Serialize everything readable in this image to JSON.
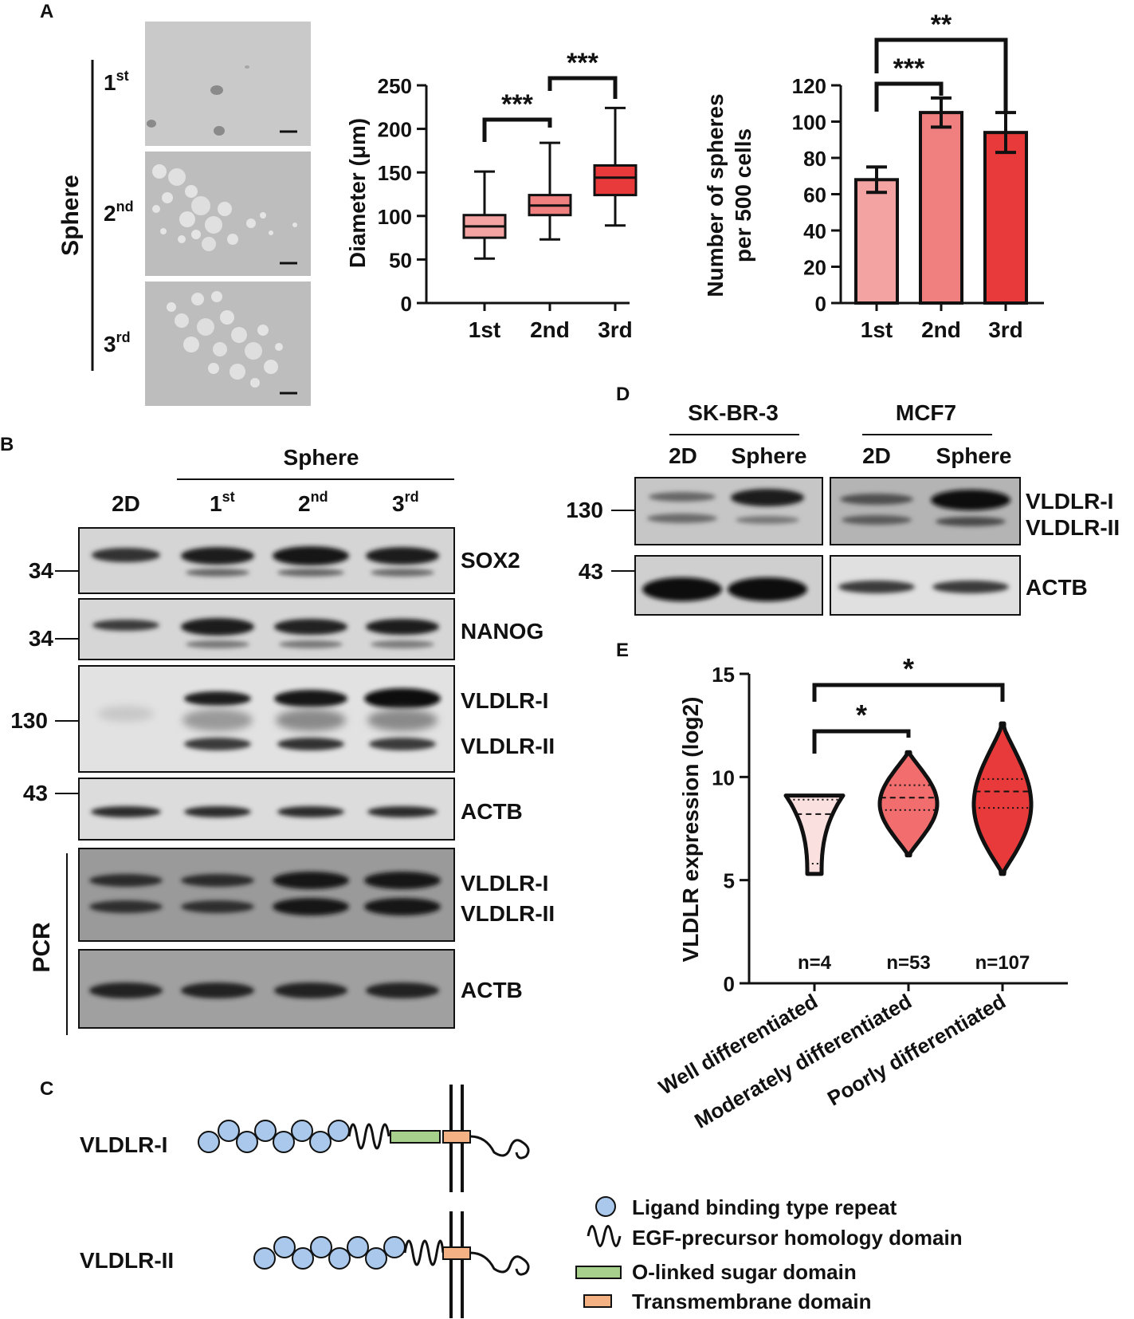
{
  "panel_letters": {
    "a": "A",
    "b": "B",
    "c": "C",
    "d": "D",
    "e": "E"
  },
  "panelA": {
    "sphere_label": "Sphere",
    "rows": [
      {
        "base": "1",
        "sup": "st"
      },
      {
        "base": "2",
        "sup": "nd"
      },
      {
        "base": "3",
        "sup": "rd"
      }
    ]
  },
  "panelB": {
    "sphere_header": "Sphere",
    "lanes": [
      {
        "base": "2D",
        "sup": ""
      },
      {
        "base": "1",
        "sup": "st"
      },
      {
        "base": "2",
        "sup": "nd"
      },
      {
        "base": "3",
        "sup": "rd"
      }
    ],
    "blots": [
      {
        "marker": "34",
        "labels": [
          "SOX2"
        ]
      },
      {
        "marker": "34",
        "labels": [
          "NANOG"
        ]
      },
      {
        "marker": "130",
        "labels": [
          "VLDLR-I",
          "VLDLR-II"
        ]
      },
      {
        "marker": "43",
        "labels": [
          "ACTB"
        ]
      },
      {
        "marker": "",
        "labels": [
          "VLDLR-I",
          "VLDLR-II"
        ]
      },
      {
        "marker": "",
        "labels": [
          "ACTB"
        ]
      }
    ],
    "pcr_label": "PCR"
  },
  "panelC": {
    "rows": [
      "VLDLR-I",
      "VLDLR-II"
    ],
    "legend": [
      "Ligand binding type repeat",
      "EGF-precursor homology domain",
      "O-linked sugar domain",
      "Transmembrane domain"
    ],
    "colors": {
      "ligand": "#a9c8ec",
      "sugar": "#a8d08d",
      "tm": "#f4b183"
    }
  },
  "panelD": {
    "groups": [
      {
        "name": "SK-BR-3",
        "lanes": [
          "2D",
          "Sphere"
        ]
      },
      {
        "name": "MCF7",
        "lanes": [
          "2D",
          "Sphere"
        ]
      }
    ],
    "markers": [
      "130",
      "43"
    ],
    "labels": [
      "VLDLR-I",
      "VLDLR-II",
      "ACTB"
    ]
  },
  "chart_data": [
    {
      "type": "box",
      "ylabel": "Diameter (μm)",
      "ylim": [
        0,
        250
      ],
      "yticks": [
        "0",
        "50",
        "100",
        "150",
        "200",
        "250"
      ],
      "categories": [
        "1st",
        "2nd",
        "3rd"
      ],
      "colors": [
        "#f4a3a3",
        "#f07f7f",
        "#e83a3a"
      ],
      "boxes": [
        {
          "min": 51,
          "q1": 75,
          "median": 88,
          "q3": 101,
          "max": 151
        },
        {
          "min": 73,
          "q1": 101,
          "median": 112,
          "q3": 124,
          "max": 184
        },
        {
          "min": 89,
          "q1": 124,
          "median": 144,
          "q3": 158,
          "max": 224
        }
      ],
      "significance": [
        {
          "from": "1st",
          "to": "2nd",
          "label": "***"
        },
        {
          "from": "2nd",
          "to": "3rd",
          "label": "***"
        }
      ]
    },
    {
      "type": "bar",
      "ylabel_lines": [
        "Number of spheres",
        "per 500 cells"
      ],
      "ylim": [
        0,
        120
      ],
      "yticks": [
        "0",
        "20",
        "40",
        "60",
        "80",
        "100",
        "120"
      ],
      "categories": [
        "1st",
        "2nd",
        "3rd"
      ],
      "values": [
        68,
        105,
        94
      ],
      "errors": [
        7,
        8,
        11
      ],
      "colors": [
        "#f4a3a3",
        "#f07f7f",
        "#e83a3a"
      ],
      "significance": [
        {
          "from": "1st",
          "to": "2nd",
          "label": "***"
        },
        {
          "from": "1st",
          "to": "3rd",
          "label": "**"
        }
      ]
    },
    {
      "type": "violin",
      "ylabel": "VLDLR expression (log2)",
      "ylim": [
        0,
        15
      ],
      "yticks": [
        "0",
        "5",
        "10",
        "15"
      ],
      "categories": [
        "Well differentiated",
        "Moderately differentiated",
        "Poorly differentiated"
      ],
      "counts": [
        "n=4",
        "n=53",
        "n=107"
      ],
      "colors": [
        "#fbe0e0",
        "#f26d6d",
        "#e83a3a"
      ],
      "violins": [
        {
          "min": 5.3,
          "q1": 5.8,
          "median": 8.2,
          "q3": 8.9,
          "max": 9.1
        },
        {
          "min": 6.2,
          "q1": 8.4,
          "median": 9.0,
          "q3": 9.6,
          "max": 11.2
        },
        {
          "min": 5.3,
          "q1": 8.5,
          "median": 9.3,
          "q3": 9.9,
          "max": 12.6
        }
      ],
      "significance": [
        {
          "from": "Well differentiated",
          "to": "Moderately differentiated",
          "label": "*"
        },
        {
          "from": "Well differentiated",
          "to": "Poorly differentiated",
          "label": "*"
        }
      ]
    }
  ]
}
